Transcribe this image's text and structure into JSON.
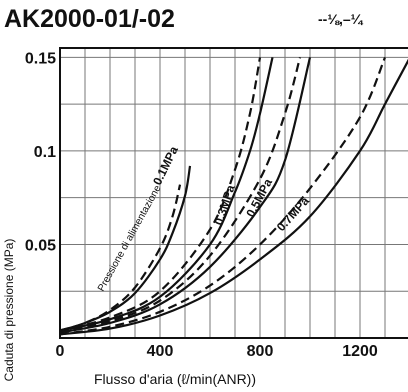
{
  "title": "AK2000-01/-02",
  "legend_text": "--⅛,–¼",
  "chart_data": {
    "type": "line",
    "title": "AK2000-01/-02",
    "xlabel": "Flusso d'aria (ℓ/min(ANR))",
    "ylabel": "Caduta di pressione (MPa)",
    "xlim": [
      0,
      1400
    ],
    "ylim": [
      0,
      0.155
    ],
    "x_ticks": [
      "0",
      "400",
      "800",
      "1200"
    ],
    "y_ticks": [
      "0.05",
      "0.1",
      "0.15"
    ],
    "grid": true,
    "annotation": "Pressione di alimentazione",
    "series": [
      {
        "name": "0.1MPa",
        "style": "solid",
        "x": [
          0,
          100,
          200,
          300,
          400,
          450,
          500,
          520
        ],
        "y": [
          0.004,
          0.008,
          0.014,
          0.024,
          0.042,
          0.056,
          0.076,
          0.092
        ]
      },
      {
        "name": "0.1MPa",
        "style": "dashed",
        "x": [
          0,
          100,
          200,
          300,
          400,
          450,
          480
        ],
        "y": [
          0.004,
          0.008,
          0.015,
          0.027,
          0.048,
          0.065,
          0.082
        ]
      },
      {
        "name": "0.3MPa",
        "style": "solid",
        "x": [
          0,
          200,
          400,
          600,
          700,
          760,
          800,
          850
        ],
        "y": [
          0.004,
          0.01,
          0.022,
          0.05,
          0.078,
          0.1,
          0.12,
          0.15
        ]
      },
      {
        "name": "0.3MPa",
        "style": "dashed",
        "x": [
          0,
          200,
          400,
          600,
          700,
          760,
          800
        ],
        "y": [
          0.004,
          0.011,
          0.025,
          0.058,
          0.09,
          0.12,
          0.15
        ]
      },
      {
        "name": "0.5MPa",
        "style": "solid",
        "x": [
          0,
          200,
          400,
          600,
          800,
          900,
          1000
        ],
        "y": [
          0.003,
          0.008,
          0.018,
          0.038,
          0.07,
          0.095,
          0.15
        ]
      },
      {
        "name": "0.5MPa",
        "style": "dashed",
        "x": [
          0,
          200,
          400,
          600,
          800,
          900,
          960
        ],
        "y": [
          0.003,
          0.009,
          0.02,
          0.044,
          0.085,
          0.12,
          0.15
        ]
      },
      {
        "name": "0.7MPa",
        "style": "solid",
        "x": [
          0,
          200,
          400,
          600,
          800,
          1000,
          1200,
          1300,
          1400
        ],
        "y": [
          0.002,
          0.005,
          0.012,
          0.024,
          0.042,
          0.065,
          0.1,
          0.125,
          0.15
        ]
      },
      {
        "name": "0.7MPa",
        "style": "dashed",
        "x": [
          0,
          200,
          400,
          600,
          800,
          1000,
          1200,
          1300
        ],
        "y": [
          0.002,
          0.006,
          0.014,
          0.028,
          0.05,
          0.08,
          0.118,
          0.15
        ]
      }
    ]
  }
}
